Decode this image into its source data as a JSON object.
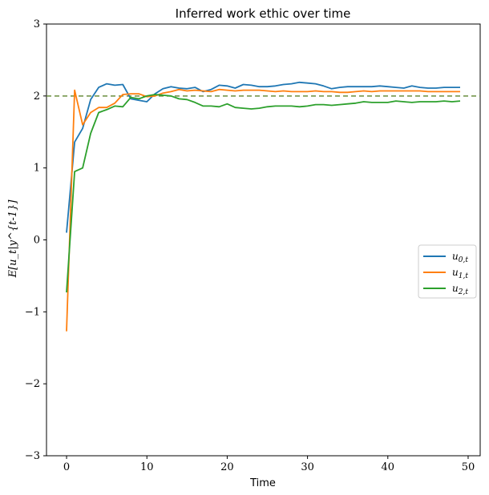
{
  "chart_data": {
    "type": "line",
    "title": "Inferred work ethic over time",
    "xlabel": "Time",
    "ylabel": "E[u_t|y^{t-1}]",
    "xlim": [
      -2.5,
      51.5
    ],
    "ylim": [
      -3,
      3
    ],
    "xticks": [
      0,
      10,
      20,
      30,
      40,
      50
    ],
    "yticks": [
      -3,
      -2,
      -1,
      0,
      1,
      2,
      3
    ],
    "x_tick_labels": [
      "0",
      "10",
      "20",
      "30",
      "40",
      "50"
    ],
    "y_tick_labels": [
      "−3",
      "−2",
      "−1",
      "0",
      "1",
      "2",
      "3"
    ],
    "grid": false,
    "legend_position": "center-right",
    "reference_line": {
      "y": 2.0,
      "style": "dashed",
      "color": "#6b8e3e"
    },
    "x": [
      0,
      1,
      2,
      3,
      4,
      5,
      6,
      7,
      8,
      9,
      10,
      11,
      12,
      13,
      14,
      15,
      16,
      17,
      18,
      19,
      20,
      21,
      22,
      23,
      24,
      25,
      26,
      27,
      28,
      29,
      30,
      31,
      32,
      33,
      34,
      35,
      36,
      37,
      38,
      39,
      40,
      41,
      42,
      43,
      44,
      45,
      46,
      47,
      48,
      49
    ],
    "series": [
      {
        "name": "u_{0,t}",
        "color": "#1f77b4",
        "values": [
          0.1,
          1.36,
          1.55,
          1.95,
          2.12,
          2.17,
          2.15,
          2.16,
          1.96,
          1.94,
          1.92,
          2.03,
          2.1,
          2.13,
          2.11,
          2.1,
          2.12,
          2.06,
          2.09,
          2.15,
          2.14,
          2.11,
          2.16,
          2.15,
          2.13,
          2.13,
          2.14,
          2.16,
          2.17,
          2.19,
          2.18,
          2.17,
          2.14,
          2.1,
          2.12,
          2.13,
          2.13,
          2.13,
          2.13,
          2.14,
          2.13,
          2.12,
          2.11,
          2.14,
          2.12,
          2.11,
          2.11,
          2.12,
          2.12,
          2.12
        ]
      },
      {
        "name": "u_{1,t}",
        "color": "#ff7f0e",
        "values": [
          -1.27,
          2.08,
          1.6,
          1.77,
          1.84,
          1.84,
          1.9,
          2.02,
          2.03,
          2.03,
          1.99,
          2.0,
          2.04,
          2.06,
          2.09,
          2.07,
          2.08,
          2.07,
          2.06,
          2.09,
          2.08,
          2.07,
          2.08,
          2.08,
          2.08,
          2.07,
          2.06,
          2.07,
          2.06,
          2.06,
          2.06,
          2.07,
          2.06,
          2.06,
          2.05,
          2.05,
          2.06,
          2.07,
          2.06,
          2.07,
          2.07,
          2.07,
          2.07,
          2.07,
          2.07,
          2.06,
          2.06,
          2.06,
          2.06,
          2.06
        ]
      },
      {
        "name": "u_{2,t}",
        "color": "#2ca02c",
        "values": [
          -0.73,
          0.95,
          1.0,
          1.48,
          1.77,
          1.81,
          1.86,
          1.85,
          1.98,
          1.96,
          2.0,
          2.02,
          2.01,
          2.0,
          1.96,
          1.95,
          1.91,
          1.86,
          1.86,
          1.85,
          1.89,
          1.84,
          1.83,
          1.82,
          1.83,
          1.85,
          1.86,
          1.86,
          1.86,
          1.85,
          1.86,
          1.88,
          1.88,
          1.87,
          1.88,
          1.89,
          1.9,
          1.92,
          1.91,
          1.91,
          1.91,
          1.93,
          1.92,
          1.91,
          1.92,
          1.92,
          1.92,
          1.93,
          1.92,
          1.93
        ]
      }
    ]
  }
}
